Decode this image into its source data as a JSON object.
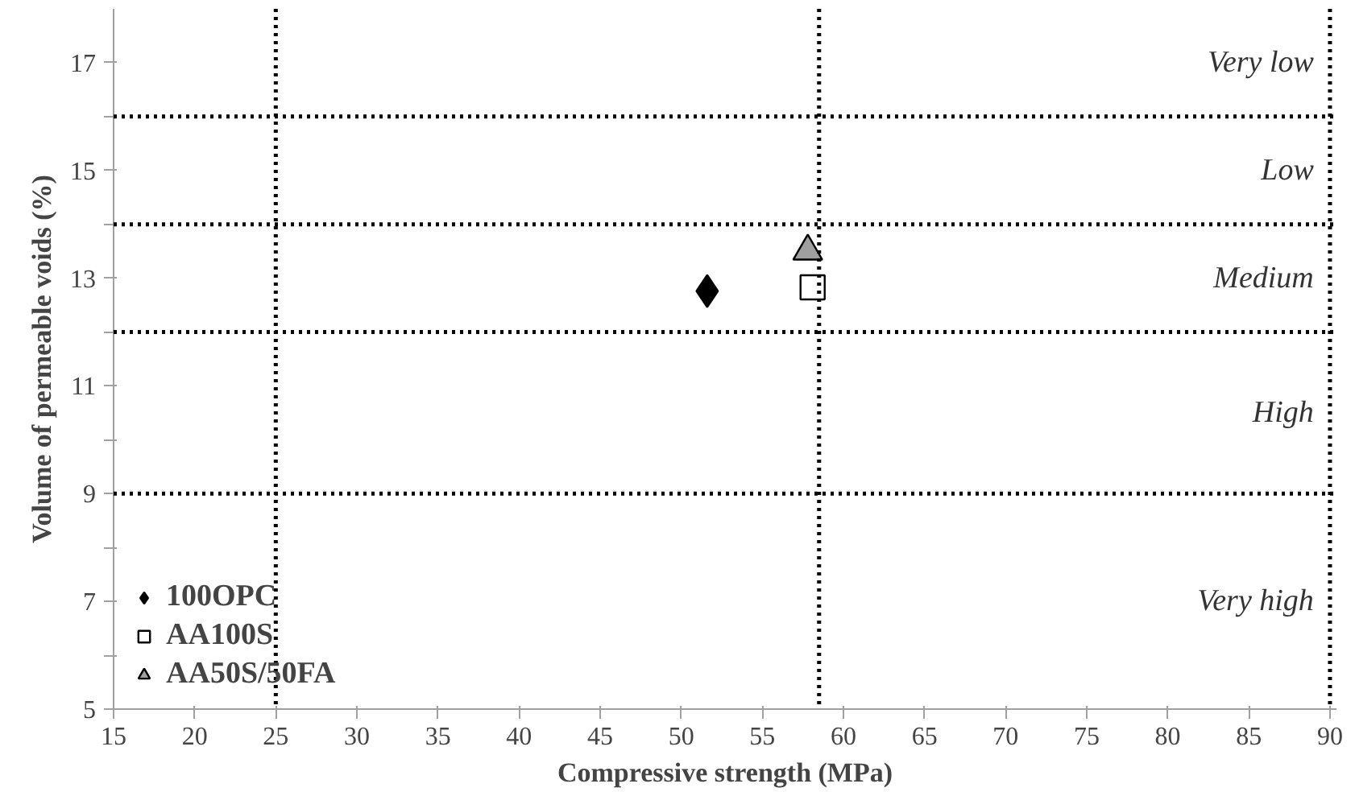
{
  "chart_data": {
    "type": "scatter",
    "xlabel": "Compressive strength (MPa)",
    "ylabel": "Volume of permeable voids (%)",
    "xlim": [
      15,
      90.4
    ],
    "xticks": [
      15,
      20,
      25,
      30,
      35,
      40,
      45,
      50,
      55,
      60,
      65,
      70,
      75,
      80,
      85,
      90
    ],
    "ylim": [
      5,
      18
    ],
    "yticks": [
      5,
      {
        "value": 6,
        "label": null
      },
      7,
      {
        "value": 8,
        "label": null
      },
      9,
      {
        "value": 10,
        "label": null
      },
      11,
      {
        "value": 12,
        "label": null
      },
      13,
      {
        "value": 14,
        "label": null
      },
      15,
      {
        "value": 16,
        "label": null
      },
      17
    ],
    "series": [
      {
        "name": "100OPC",
        "color": "#000000",
        "marker": "diamond",
        "x": [
          51.6
        ],
        "values": [
          12.76
        ]
      },
      {
        "name": "AA100S",
        "color": "#ffffff",
        "marker": "square",
        "x": [
          58.1
        ],
        "values": [
          12.83
        ]
      },
      {
        "name": "AA50S/50FA",
        "color": "#a0a0a0",
        "marker": "triangle",
        "x": [
          57.8
        ],
        "values": [
          13.5
        ]
      }
    ],
    "ref_lines": [
      {
        "axis": "x",
        "value": 25,
        "line_style": "dotted",
        "color": "#000000"
      },
      {
        "axis": "x",
        "value": 58.5,
        "line_style": "dotted",
        "color": "#000000"
      },
      {
        "axis": "x",
        "value": 90,
        "line_style": "dotted",
        "color": "#000000"
      },
      {
        "axis": "y",
        "value": 16,
        "line_style": "dotted",
        "color": "#000000"
      },
      {
        "axis": "y",
        "value": 14,
        "line_style": "dotted",
        "color": "#000000"
      },
      {
        "axis": "y",
        "value": 12,
        "line_style": "dotted",
        "color": "#000000"
      },
      {
        "axis": "y",
        "value": 9,
        "line_style": "dotted",
        "color": "#000000"
      }
    ],
    "annotations": [
      "Very low",
      "Low",
      "Medium",
      "High",
      "Very high"
    ],
    "legend": "bottom left",
    "grid": false
  }
}
